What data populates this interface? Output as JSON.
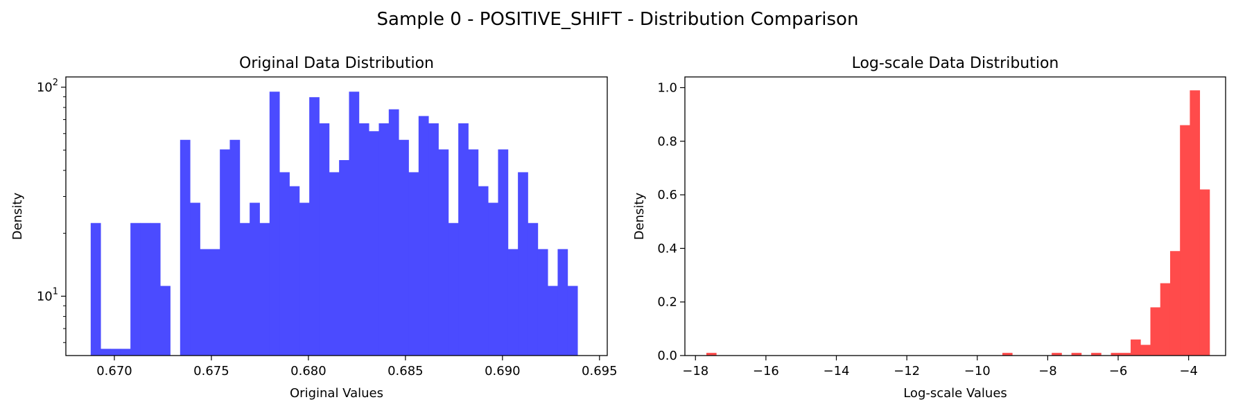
{
  "figure_title": "Sample 0 - POSITIVE_SHIFT - Distribution Comparison",
  "colors": {
    "left_bars": "#4b4bff",
    "right_bars": "#ff4b4b",
    "axes": "#000000"
  },
  "chart_data": [
    {
      "type": "histogram",
      "title": "Original Data Distribution",
      "xlabel": "Original Values",
      "ylabel": "Density",
      "yscale": "log",
      "xlim": [
        0.6675,
        0.6954
      ],
      "ylim": [
        5.2,
        112
      ],
      "xticks": [
        0.67,
        0.675,
        0.68,
        0.685,
        0.69,
        0.695
      ],
      "xtick_labels": [
        "0.670",
        "0.675",
        "0.680",
        "0.685",
        "0.690",
        "0.695"
      ],
      "yticks": [
        10,
        100
      ],
      "ytick_labels": [
        "10¹",
        "10²"
      ],
      "bin_start": 0.66878,
      "bin_width": 0.000512,
      "values": [
        22.4,
        5.6,
        5.6,
        5.6,
        22.4,
        22.4,
        22.4,
        11.2,
        0,
        56,
        28,
        16.8,
        16.8,
        50.4,
        56,
        22.4,
        28,
        22.4,
        95.2,
        39.2,
        33.6,
        28,
        89.6,
        67.2,
        39.2,
        44.8,
        95.2,
        67.2,
        61.6,
        67.2,
        78.4,
        56,
        39.2,
        72.8,
        67.2,
        50.4,
        22.4,
        67.2,
        50.4,
        33.6,
        28,
        50.4,
        16.8,
        39.2,
        22.4,
        16.8,
        11.2,
        16.8,
        11.2
      ]
    },
    {
      "type": "histogram",
      "title": "Log-scale Data Distribution",
      "xlabel": "Log-scale Values",
      "ylabel": "Density",
      "yscale": "linear",
      "xlim": [
        -18.3,
        -2.95
      ],
      "ylim": [
        0,
        1.04
      ],
      "xticks": [
        -18,
        -16,
        -14,
        -12,
        -10,
        -8,
        -6,
        -4
      ],
      "xtick_labels": [
        "−18",
        "−16",
        "−14",
        "−12",
        "−10",
        "−8",
        "−6",
        "−4"
      ],
      "yticks": [
        0.0,
        0.2,
        0.4,
        0.6,
        0.8,
        1.0
      ],
      "ytick_labels": [
        "0.0",
        "0.2",
        "0.4",
        "0.6",
        "0.8",
        "1.0"
      ],
      "bin_start": -17.69,
      "bin_width": 0.2801,
      "values": [
        0.01,
        0,
        0,
        0,
        0,
        0,
        0,
        0,
        0,
        0,
        0,
        0,
        0,
        0,
        0,
        0,
        0,
        0,
        0,
        0,
        0,
        0,
        0,
        0,
        0,
        0,
        0,
        0,
        0,
        0,
        0.01,
        0,
        0,
        0,
        0,
        0.01,
        0,
        0.01,
        0,
        0.01,
        0,
        0.01,
        0.01,
        0.06,
        0.04,
        0.18,
        0.27,
        0.39,
        0.86,
        0.99,
        0.62
      ]
    }
  ]
}
